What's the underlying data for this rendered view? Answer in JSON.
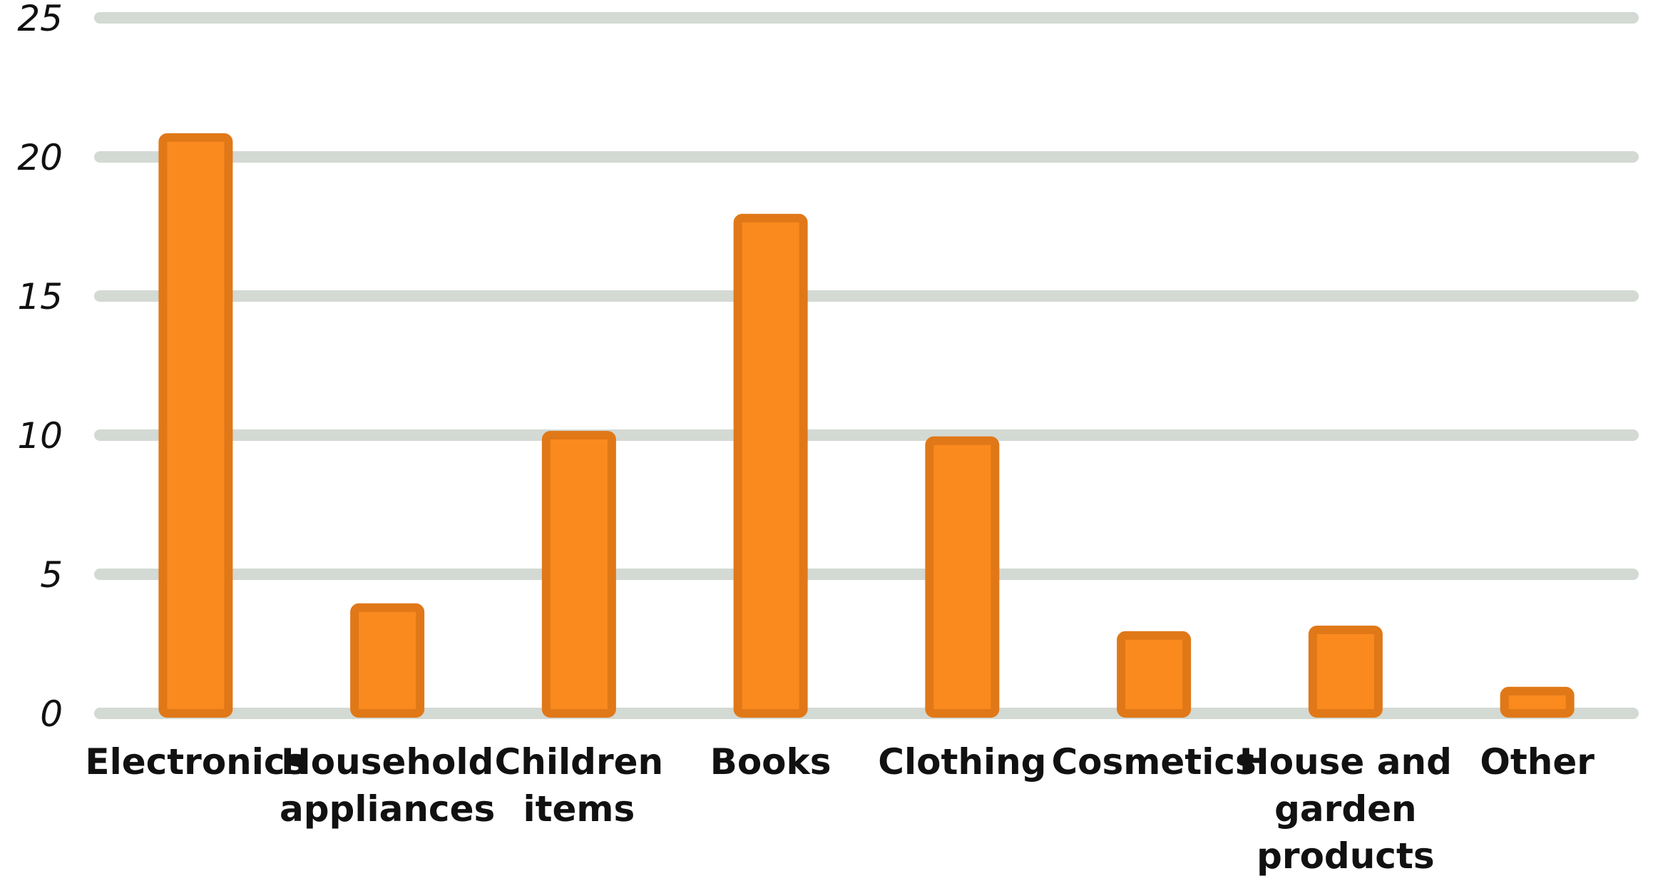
{
  "chart_data": {
    "type": "bar",
    "title": "",
    "xlabel": "",
    "ylabel": "",
    "categories": [
      [
        "Electronics"
      ],
      [
        "Household",
        "appliances"
      ],
      [
        "Children",
        "items"
      ],
      [
        "Books"
      ],
      [
        "Clothing"
      ],
      [
        "Cosmetics"
      ],
      [
        "House and",
        "garden",
        "products"
      ],
      [
        "Other"
      ]
    ],
    "values": [
      20.7,
      3.8,
      10,
      17.8,
      9.8,
      2.8,
      3,
      0.8
    ],
    "ylim": [
      0,
      25
    ],
    "yticks": [
      "0",
      "5",
      "10",
      "15",
      "20",
      "25"
    ],
    "grid": true,
    "legend": "none",
    "colors": {
      "bar_fill": "#fa8a1e",
      "bar_outline": "#e07818",
      "grid": "#d3d9d3",
      "text": "#111111"
    }
  }
}
